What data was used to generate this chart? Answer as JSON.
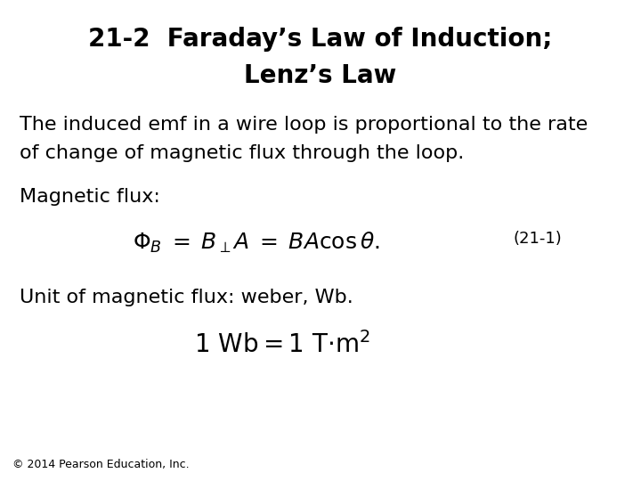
{
  "title_line1": "21-2  Faraday’s Law of Induction;",
  "title_line2": "Lenz’s Law",
  "body_text1_l1": "The induced emf in a wire loop is proportional to the rate",
  "body_text1_l2": "of change of magnetic flux through the loop.",
  "body_text2": "Magnetic flux:",
  "eq_label": "(21-1)",
  "body_text3": "Unit of magnetic flux: weber, Wb.",
  "footer": "© 2014 Pearson Education, Inc.",
  "bg_color": "#ffffff",
  "text_color": "#000000",
  "title_fontsize": 20,
  "body_fontsize": 16,
  "eq_fontsize": 18,
  "footer_fontsize": 9
}
